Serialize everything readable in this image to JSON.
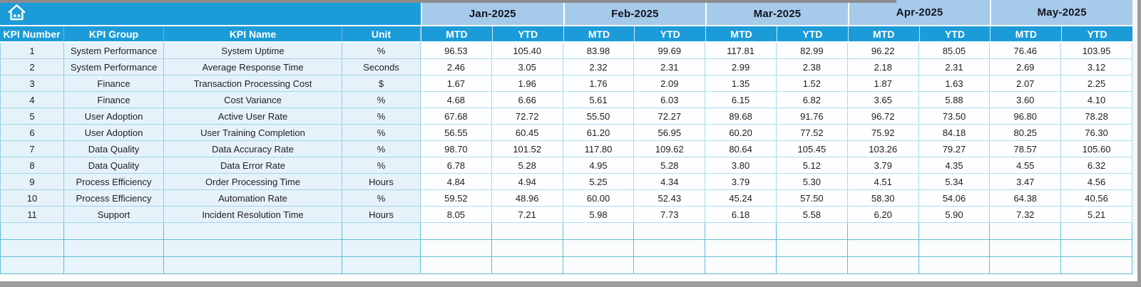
{
  "table": {
    "left_headers": [
      "KPI Number",
      "KPI Group",
      "KPI Name",
      "Unit"
    ],
    "months": [
      "Jan-2025",
      "Feb-2025",
      "Mar-2025",
      "Apr-2025",
      "May-2025"
    ],
    "period_headers": [
      "MTD",
      "YTD"
    ],
    "rows": [
      {
        "kpi_number": "1",
        "kpi_group": "System Performance",
        "kpi_name": "System Uptime",
        "unit": "%",
        "values": [
          "96.53",
          "105.40",
          "83.98",
          "99.69",
          "117.81",
          "82.99",
          "96.22",
          "85.05",
          "76.46",
          "103.95"
        ]
      },
      {
        "kpi_number": "2",
        "kpi_group": "System Performance",
        "kpi_name": "Average Response Time",
        "unit": "Seconds",
        "values": [
          "2.46",
          "3.05",
          "2.32",
          "2.31",
          "2.99",
          "2.38",
          "2.18",
          "2.31",
          "2.69",
          "3.12"
        ]
      },
      {
        "kpi_number": "3",
        "kpi_group": "Finance",
        "kpi_name": "Transaction Processing Cost",
        "unit": "$",
        "values": [
          "1.67",
          "1.96",
          "1.76",
          "2.09",
          "1.35",
          "1.52",
          "1.87",
          "1.63",
          "2.07",
          "2.25"
        ]
      },
      {
        "kpi_number": "4",
        "kpi_group": "Finance",
        "kpi_name": "Cost Variance",
        "unit": "%",
        "values": [
          "4.68",
          "6.66",
          "5.61",
          "6.03",
          "6.15",
          "6.82",
          "3.65",
          "5.88",
          "3.60",
          "4.10"
        ]
      },
      {
        "kpi_number": "5",
        "kpi_group": "User Adoption",
        "kpi_name": "Active User Rate",
        "unit": "%",
        "values": [
          "67.68",
          "72.72",
          "55.50",
          "72.27",
          "89.68",
          "91.76",
          "96.72",
          "73.50",
          "96.80",
          "78.28"
        ]
      },
      {
        "kpi_number": "6",
        "kpi_group": "User Adoption",
        "kpi_name": "User Training Completion",
        "unit": "%",
        "values": [
          "56.55",
          "60.45",
          "61.20",
          "56.95",
          "60.20",
          "77.52",
          "75.92",
          "84.18",
          "80.25",
          "76.30"
        ]
      },
      {
        "kpi_number": "7",
        "kpi_group": "Data Quality",
        "kpi_name": "Data Accuracy Rate",
        "unit": "%",
        "values": [
          "98.70",
          "101.52",
          "117.80",
          "109.62",
          "80.64",
          "105.45",
          "103.26",
          "79.27",
          "78.57",
          "105.60"
        ]
      },
      {
        "kpi_number": "8",
        "kpi_group": "Data Quality",
        "kpi_name": "Data Error Rate",
        "unit": "%",
        "values": [
          "6.78",
          "5.28",
          "4.95",
          "5.28",
          "3.80",
          "5.12",
          "3.79",
          "4.35",
          "4.55",
          "6.32"
        ]
      },
      {
        "kpi_number": "9",
        "kpi_group": "Process Efficiency",
        "kpi_name": "Order Processing Time",
        "unit": "Hours",
        "values": [
          "4.84",
          "4.94",
          "5.25",
          "4.34",
          "3.79",
          "5.30",
          "4.51",
          "5.34",
          "3.47",
          "4.56"
        ]
      },
      {
        "kpi_number": "10",
        "kpi_group": "Process Efficiency",
        "kpi_name": "Automation Rate",
        "unit": "%",
        "values": [
          "59.52",
          "48.96",
          "60.00",
          "52.43",
          "45.24",
          "57.50",
          "58.30",
          "54.06",
          "64.38",
          "40.56"
        ]
      },
      {
        "kpi_number": "11",
        "kpi_group": "Support",
        "kpi_name": "Incident Resolution Time",
        "unit": "Hours",
        "values": [
          "8.05",
          "7.21",
          "5.98",
          "7.73",
          "6.18",
          "5.58",
          "6.20",
          "5.90",
          "7.32",
          "5.21"
        ]
      }
    ],
    "empty_row_count": 3
  },
  "icons": {
    "home": "home-icon"
  },
  "colors": {
    "header_cyan": "#1b9cd8",
    "month_blue": "#a6cae9",
    "left_cell_blue": "#e6f2fa",
    "grid_teal": "#5fbdd2",
    "chrome_gray": "#9d9d9d"
  }
}
